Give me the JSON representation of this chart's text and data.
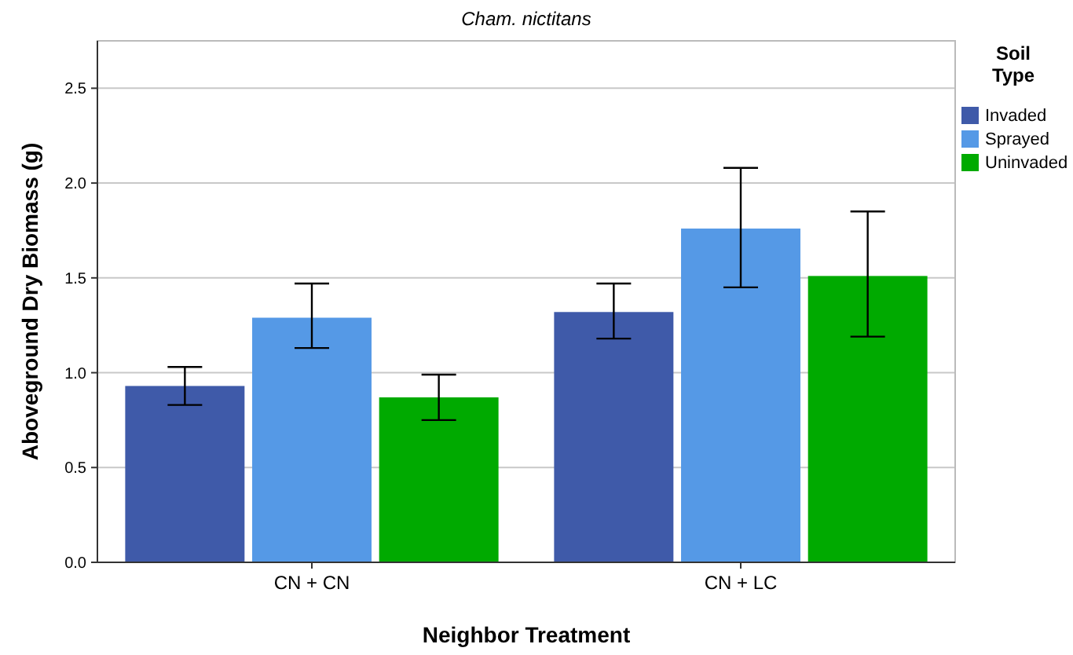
{
  "chart_data": {
    "type": "bar",
    "title": "Cham. nictitans",
    "xlabel": "Neighbor Treatment",
    "ylabel": "Aboveground Dry Biomass (g)",
    "legend_title": "Soil Type",
    "categories": [
      "CN + CN",
      "CN + LC"
    ],
    "series": [
      {
        "name": "Invaded",
        "color": "#3f5aa9",
        "values": [
          0.93,
          1.32
        ],
        "errors": [
          [
            0.83,
            1.03
          ],
          [
            1.18,
            1.47
          ]
        ]
      },
      {
        "name": "Sprayed",
        "color": "#5599e6",
        "values": [
          1.29,
          1.76
        ],
        "errors": [
          [
            1.13,
            1.47
          ],
          [
            1.45,
            2.08
          ]
        ]
      },
      {
        "name": "Uninvaded",
        "color": "#00aa00",
        "values": [
          0.87,
          1.51
        ],
        "errors": [
          [
            0.75,
            0.99
          ],
          [
            1.19,
            1.85
          ]
        ]
      }
    ],
    "ylim": [
      0,
      2.75
    ],
    "yticks": [
      {
        "value": 0,
        "label": "0.0"
      },
      {
        "value": 0.5,
        "label": "0.5"
      },
      {
        "value": 1,
        "label": "1.0"
      },
      {
        "value": 1.5,
        "label": "1.5"
      },
      {
        "value": 2,
        "label": "2.0"
      },
      {
        "value": 2.5,
        "label": "2.5"
      }
    ],
    "grid": "y",
    "legend": "top right"
  }
}
